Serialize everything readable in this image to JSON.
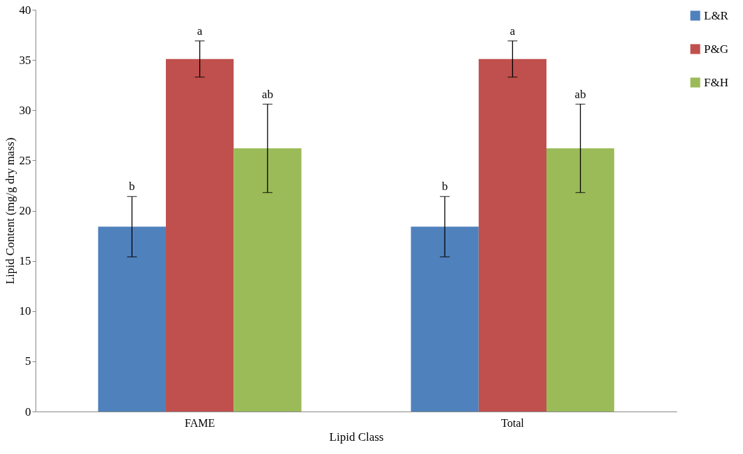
{
  "chart_data": {
    "type": "bar",
    "xlabel": "Lipid Class",
    "ylabel": "Lipid Content (mg/g dry mass)",
    "categories": [
      "FAME",
      "Total"
    ],
    "series": [
      {
        "name": "L&R",
        "color": "#4f81bd",
        "values": [
          18.4,
          18.4
        ],
        "errors": [
          3.0,
          3.0
        ]
      },
      {
        "name": "P&G",
        "color": "#c0504d",
        "values": [
          35.1,
          35.1
        ],
        "errors": [
          1.8,
          1.8
        ]
      },
      {
        "name": "F&H",
        "color": "#9bbb59",
        "values": [
          26.2,
          26.2
        ],
        "errors": [
          4.4,
          4.4
        ]
      }
    ],
    "ylim": [
      0,
      40
    ],
    "yticks": [
      0,
      5,
      10,
      15,
      20,
      25,
      30,
      35,
      40
    ],
    "grid": false,
    "legend": "right",
    "annotations": [
      "b",
      "a",
      "ab",
      "b",
      "a",
      "ab"
    ]
  }
}
